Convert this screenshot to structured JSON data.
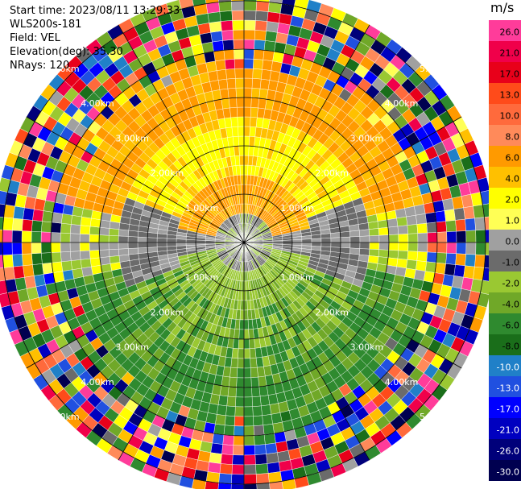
{
  "header": {
    "start_time": "Start time: 2023/08/11 13:29:33",
    "instrument": "WLS200s-181",
    "field": "Field: VEL",
    "elevation": "Elevation(deg): 35.30",
    "nrays": "NRays: 120"
  },
  "colorbar": {
    "unit": "m/s",
    "ticks": [
      "26.0",
      "21.0",
      "17.0",
      "13.0",
      "10.0",
      "8.0",
      "6.0",
      "4.0",
      "2.0",
      "1.0",
      "0.0",
      "-1.0",
      "-2.0",
      "-4.0",
      "-6.0",
      "-8.0",
      "-10.0",
      "-13.0",
      "-17.0",
      "-21.0",
      "-26.0",
      "-30.0"
    ],
    "colors": [
      "#ff3c9a",
      "#f0004a",
      "#e8001a",
      "#ff4b1a",
      "#ff6a3c",
      "#ff8a5a",
      "#ff9a00",
      "#ffc000",
      "#ffff00",
      "#ffff55",
      "#a0a0a0",
      "#6b6b6b",
      "#9ac832",
      "#70a828",
      "#2f8a2f",
      "#1a6e1a",
      "#2080c8",
      "#2050e0",
      "#0000ff",
      "#0000c0",
      "#00007a",
      "#000050"
    ]
  },
  "chart_data": {
    "type": "heatmap",
    "projection": "polar PPI",
    "field": "VEL",
    "nrays": 120,
    "range_rings": [
      "1.00km",
      "2.00km",
      "3.00km",
      "4.00km",
      "5.00km"
    ],
    "legend_placement": "right",
    "velocity_pattern": [
      {
        "range_km_min": 0.0,
        "range_km_max": 0.6,
        "dominant_values": [
          0.0,
          -1.0,
          -2.0
        ]
      },
      {
        "range_km_min": 0.6,
        "range_km_max": 1.3,
        "north_values": [
          4.0,
          6.0
        ],
        "south_values": [
          -2.0,
          -4.0
        ]
      },
      {
        "range_km_min": 1.3,
        "range_km_max": 2.5,
        "north_values": [
          2.0,
          4.0
        ],
        "south_values": [
          -2.0,
          -6.0
        ],
        "east_west_values": [
          0.0,
          -1.0
        ]
      },
      {
        "range_km_min": 2.5,
        "range_km_max": 4.0,
        "north_values": [
          6.0,
          4.0
        ],
        "south_values": [
          -6.0,
          -8.0
        ]
      },
      {
        "range_km_min": 4.0,
        "range_km_max": 5.2,
        "north_values": [
          6.0
        ],
        "south_values": [
          -6.0
        ],
        "noise": true
      }
    ]
  }
}
